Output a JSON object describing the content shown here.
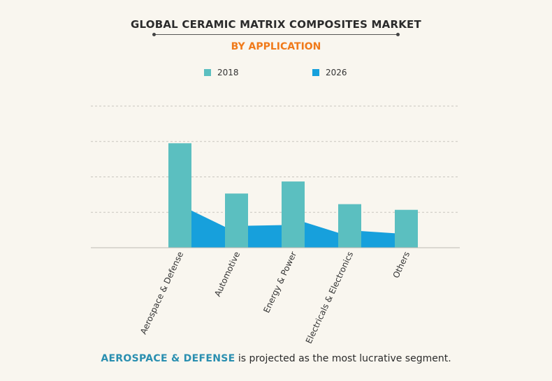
{
  "title": "GLOBAL CERAMIC MATRIX COMPOSITES MARKET",
  "subtitle": "BY APPLICATION",
  "chart_data": {
    "type": "bar",
    "categories": [
      "Aerospace & Defense",
      "Automotive",
      "Energy & Power",
      "Electricals & Electronics",
      "Others"
    ],
    "series": [
      {
        "name": "2018",
        "values": [
          2.95,
          1.53,
          1.87,
          1.23,
          1.07
        ],
        "color": "#5bbfc0",
        "render": "bar"
      },
      {
        "name": "2026",
        "values": [
          1.05,
          0.62,
          0.72,
          0.47,
          0.48
        ],
        "color": "#17a0dc",
        "render": "area"
      }
    ],
    "ylim": [
      0,
      4
    ],
    "grid": true,
    "legend_position": "top"
  },
  "footnote": {
    "highlight": "AEROSPACE & DEFENSE",
    "rest": " is projected as the most lucrative segment."
  }
}
